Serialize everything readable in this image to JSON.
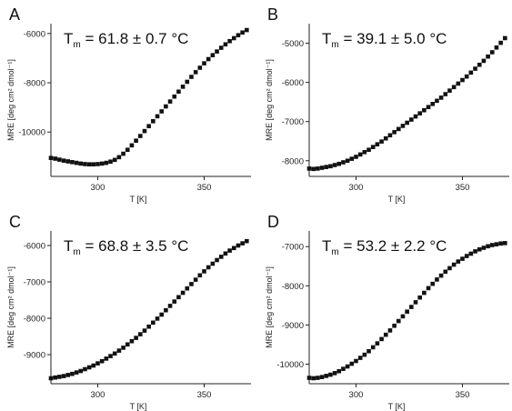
{
  "chart_data": [
    {
      "type": "scatter",
      "panel_label": "A",
      "annotation": {
        "main": "T",
        "sub": "m",
        "text": " = 61.8 ± 0.7 °C"
      },
      "xlabel": "T [K]",
      "ylabel": "MRE [deg cm² dmol⁻¹]",
      "xlim": [
        278,
        372
      ],
      "ylim": [
        -11800,
        -5600
      ],
      "xticks": [
        300,
        350
      ],
      "yticks": [
        -10000,
        -8000,
        -6000
      ],
      "x": [
        278,
        280,
        282,
        284,
        286,
        288,
        290,
        292,
        294,
        296,
        298,
        300,
        302,
        304,
        306,
        308,
        310,
        312,
        314,
        316,
        318,
        320,
        322,
        324,
        326,
        328,
        330,
        332,
        334,
        336,
        338,
        340,
        342,
        344,
        346,
        348,
        350,
        352,
        354,
        356,
        358,
        360,
        362,
        364,
        366,
        368,
        370
      ],
      "y": [
        -11050,
        -11080,
        -11120,
        -11160,
        -11190,
        -11220,
        -11250,
        -11280,
        -11300,
        -11310,
        -11310,
        -11300,
        -11280,
        -11250,
        -11200,
        -11130,
        -11020,
        -10880,
        -10720,
        -10540,
        -10350,
        -10160,
        -9960,
        -9760,
        -9560,
        -9360,
        -9160,
        -8960,
        -8760,
        -8560,
        -8360,
        -8160,
        -7960,
        -7760,
        -7570,
        -7390,
        -7210,
        -7040,
        -6880,
        -6730,
        -6580,
        -6440,
        -6310,
        -6190,
        -6070,
        -5960,
        -5860
      ]
    },
    {
      "type": "scatter",
      "panel_label": "B",
      "annotation": {
        "main": "T",
        "sub": "m",
        "text": " = 39.1 ± 5.0 °C"
      },
      "xlabel": "T [K]",
      "ylabel": "MRE [deg cm² dmol⁻¹]",
      "xlim": [
        278,
        372
      ],
      "ylim": [
        -8400,
        -4500
      ],
      "xticks": [
        300,
        350
      ],
      "yticks": [
        -8000,
        -7000,
        -6000,
        -5000
      ],
      "x": [
        278,
        280,
        282,
        284,
        286,
        288,
        290,
        292,
        294,
        296,
        298,
        300,
        302,
        304,
        306,
        308,
        310,
        312,
        314,
        316,
        318,
        320,
        322,
        324,
        326,
        328,
        330,
        332,
        334,
        336,
        338,
        340,
        342,
        344,
        346,
        348,
        350,
        352,
        354,
        356,
        358,
        360,
        362,
        364,
        366,
        368,
        370
      ],
      "y": [
        -8200,
        -8210,
        -8200,
        -8180,
        -8160,
        -8140,
        -8110,
        -8080,
        -8040,
        -8000,
        -7950,
        -7900,
        -7840,
        -7780,
        -7720,
        -7650,
        -7580,
        -7510,
        -7430,
        -7350,
        -7270,
        -7190,
        -7110,
        -7030,
        -6950,
        -6870,
        -6790,
        -6710,
        -6630,
        -6550,
        -6470,
        -6390,
        -6300,
        -6210,
        -6120,
        -6030,
        -5940,
        -5850,
        -5750,
        -5650,
        -5550,
        -5450,
        -5340,
        -5230,
        -5110,
        -4990,
        -4870
      ]
    },
    {
      "type": "scatter",
      "panel_label": "C",
      "annotation": {
        "main": "T",
        "sub": "m",
        "text": " = 68.8 ± 3.5 °C"
      },
      "xlabel": "T [K]",
      "ylabel": "MRE [deg cm² dmol⁻¹]",
      "xlim": [
        278,
        372
      ],
      "ylim": [
        -9800,
        -5600
      ],
      "xticks": [
        300,
        350
      ],
      "yticks": [
        -9000,
        -8000,
        -7000,
        -6000
      ],
      "x": [
        278,
        280,
        282,
        284,
        286,
        288,
        290,
        292,
        294,
        296,
        298,
        300,
        302,
        304,
        306,
        308,
        310,
        312,
        314,
        316,
        318,
        320,
        322,
        324,
        326,
        328,
        330,
        332,
        334,
        336,
        338,
        340,
        342,
        344,
        346,
        348,
        350,
        352,
        354,
        356,
        358,
        360,
        362,
        364,
        366,
        368,
        370
      ],
      "y": [
        -9650,
        -9630,
        -9610,
        -9590,
        -9560,
        -9530,
        -9490,
        -9450,
        -9400,
        -9350,
        -9300,
        -9240,
        -9180,
        -9110,
        -9040,
        -8970,
        -8890,
        -8810,
        -8720,
        -8630,
        -8540,
        -8440,
        -8340,
        -8230,
        -8120,
        -8010,
        -7900,
        -7780,
        -7660,
        -7540,
        -7420,
        -7300,
        -7180,
        -7060,
        -6940,
        -6820,
        -6710,
        -6600,
        -6500,
        -6400,
        -6310,
        -6220,
        -6140,
        -6070,
        -6000,
        -5940,
        -5880
      ]
    },
    {
      "type": "scatter",
      "panel_label": "D",
      "annotation": {
        "main": "T",
        "sub": "m",
        "text": " = 53.2 ± 2.2 °C"
      },
      "xlabel": "T [K]",
      "ylabel": "MRE [deg cm² dmol⁻¹]",
      "xlim": [
        278,
        372
      ],
      "ylim": [
        -10500,
        -6600
      ],
      "xticks": [
        300,
        350
      ],
      "yticks": [
        -10000,
        -9000,
        -8000,
        -7000
      ],
      "x": [
        278,
        280,
        282,
        284,
        286,
        288,
        290,
        292,
        294,
        296,
        298,
        300,
        302,
        304,
        306,
        308,
        310,
        312,
        314,
        316,
        318,
        320,
        322,
        324,
        326,
        328,
        330,
        332,
        334,
        336,
        338,
        340,
        342,
        344,
        346,
        348,
        350,
        352,
        354,
        356,
        358,
        360,
        362,
        364,
        366,
        368,
        370
      ],
      "y": [
        -10350,
        -10360,
        -10350,
        -10330,
        -10300,
        -10270,
        -10230,
        -10180,
        -10120,
        -10060,
        -9990,
        -9920,
        -9840,
        -9760,
        -9670,
        -9570,
        -9470,
        -9360,
        -9250,
        -9140,
        -9020,
        -8900,
        -8780,
        -8660,
        -8540,
        -8420,
        -8300,
        -8180,
        -8060,
        -7950,
        -7840,
        -7740,
        -7640,
        -7550,
        -7460,
        -7380,
        -7310,
        -7240,
        -7180,
        -7120,
        -7070,
        -7030,
        -6990,
        -6960,
        -6940,
        -6920,
        -6910
      ]
    }
  ]
}
